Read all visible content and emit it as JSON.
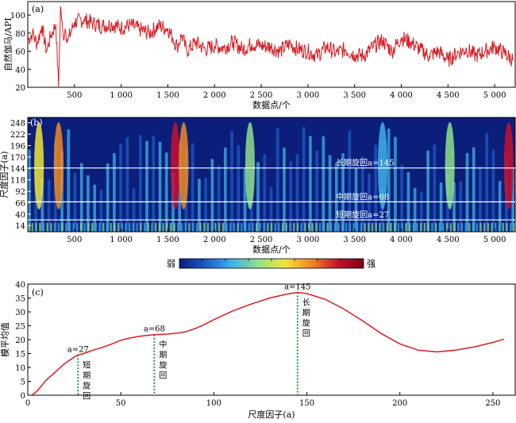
{
  "chart_data": [
    {
      "type": "line",
      "panel_label": "(a)",
      "xlabel": "数据点/个",
      "ylabel": "自然伽马/API",
      "xlim": [
        0,
        5220
      ],
      "ylim": [
        20,
        115
      ],
      "x_ticks": [
        500,
        1000,
        1500,
        2000,
        2500,
        3000,
        3500,
        4000,
        4500,
        5000
      ],
      "x_tick_labels": [
        "500",
        "1 000",
        "1 500",
        "2 000",
        "2 500",
        "3 000",
        "3 500",
        "4 000",
        "4 500",
        "5 000"
      ],
      "y_ticks": [
        20,
        40,
        60,
        80,
        100
      ],
      "y_tick_labels": [
        "20",
        "40",
        "60",
        "80",
        "100"
      ],
      "color": "#d61e24",
      "x": [
        0,
        50,
        100,
        150,
        200,
        250,
        300,
        330,
        350,
        380,
        400,
        430,
        500,
        600,
        700,
        800,
        900,
        1000,
        1100,
        1200,
        1300,
        1400,
        1500,
        1550,
        1600,
        1650,
        1700,
        1800,
        1900,
        2000,
        2100,
        2200,
        2300,
        2400,
        2500,
        2600,
        2700,
        2800,
        2900,
        3000,
        3100,
        3200,
        3300,
        3400,
        3500,
        3600,
        3700,
        3800,
        3900,
        4000,
        4100,
        4200,
        4300,
        4400,
        4500,
        4600,
        4700,
        4800,
        4900,
        5000,
        5100,
        5200
      ],
      "values": [
        72,
        80,
        68,
        88,
        60,
        78,
        90,
        20,
        110,
        75,
        85,
        72,
        92,
        95,
        91,
        88,
        90,
        86,
        89,
        84,
        80,
        88,
        85,
        75,
        65,
        78,
        60,
        70,
        62,
        66,
        64,
        70,
        62,
        68,
        66,
        65,
        60,
        68,
        62,
        60,
        55,
        65,
        58,
        62,
        56,
        55,
        65,
        72,
        60,
        75,
        70,
        62,
        55,
        60,
        50,
        58,
        62,
        55,
        60,
        65,
        58,
        50
      ]
    },
    {
      "type": "heatmap",
      "panel_label": "(b)",
      "xlabel": "数据点/个",
      "ylabel": "尺度因子(a)",
      "xlim": [
        0,
        5220
      ],
      "ylim": [
        0,
        260
      ],
      "x_ticks": [
        500,
        1000,
        1500,
        2000,
        2500,
        3000,
        3500,
        4000,
        4500,
        5000
      ],
      "x_tick_labels": [
        "500",
        "1 000",
        "1 500",
        "2 000",
        "2 500",
        "3 000",
        "3 500",
        "4 000",
        "4 500",
        "5 000"
      ],
      "y_ticks": [
        14,
        40,
        66,
        92,
        118,
        144,
        170,
        196,
        222,
        248
      ],
      "y_tick_labels": [
        "14",
        "40",
        "66",
        "92",
        "118",
        "144",
        "170",
        "196",
        "222",
        "248"
      ],
      "annotations": [
        {
          "text": "长期旋回a=145",
          "scale": 145
        },
        {
          "text": "中期旋回a=68",
          "scale": 68
        },
        {
          "text": "短期旋回a=27",
          "scale": 27
        }
      ],
      "colorbar": {
        "low_label": "弱",
        "high_label": "强",
        "colors": [
          "#0b1f7a",
          "#1e5bc8",
          "#3fb2e8",
          "#8fe08a",
          "#f2e43a",
          "#f08a22",
          "#c8102e",
          "#7a0014"
        ]
      }
    },
    {
      "type": "line",
      "panel_label": "(c)",
      "xlabel": "尺度因子(a)",
      "ylabel": "模平均值",
      "xlim": [
        0,
        262
      ],
      "ylim": [
        0,
        40
      ],
      "x_ticks": [
        0,
        50,
        100,
        150,
        200,
        250
      ],
      "x_tick_labels": [
        "0",
        "50",
        "100",
        "150",
        "200",
        "250"
      ],
      "y_ticks": [
        0,
        5,
        10,
        15,
        20,
        25,
        30,
        35,
        40
      ],
      "y_tick_labels": [
        "0",
        "5",
        "10",
        "15",
        "20",
        "25",
        "30",
        "35",
        "40"
      ],
      "color": "#d61e24",
      "x": [
        2,
        5,
        10,
        15,
        20,
        25,
        27,
        30,
        35,
        40,
        45,
        50,
        55,
        60,
        65,
        68,
        75,
        80,
        85,
        90,
        95,
        100,
        110,
        120,
        130,
        140,
        145,
        150,
        160,
        170,
        180,
        190,
        200,
        210,
        220,
        230,
        240,
        250,
        256
      ],
      "values": [
        0,
        1.5,
        5.5,
        8.5,
        11.5,
        13.8,
        14.5,
        15.0,
        16.2,
        17.2,
        18.4,
        19.8,
        20.6,
        21.2,
        21.6,
        21.8,
        22.0,
        22.3,
        22.9,
        24.0,
        25.5,
        27.2,
        30.3,
        32.8,
        35.0,
        36.5,
        37.0,
        36.6,
        34.5,
        31.0,
        26.8,
        22.2,
        18.5,
        16.2,
        15.6,
        16.2,
        17.4,
        19.0,
        20.2
      ],
      "markers": [
        {
          "scale": 27,
          "label": "a=27",
          "text": "短期旋回"
        },
        {
          "scale": 68,
          "label": "a=68",
          "text": "中期旋回"
        },
        {
          "scale": 145,
          "label": "a=145",
          "text": "长期旋回"
        }
      ]
    }
  ]
}
